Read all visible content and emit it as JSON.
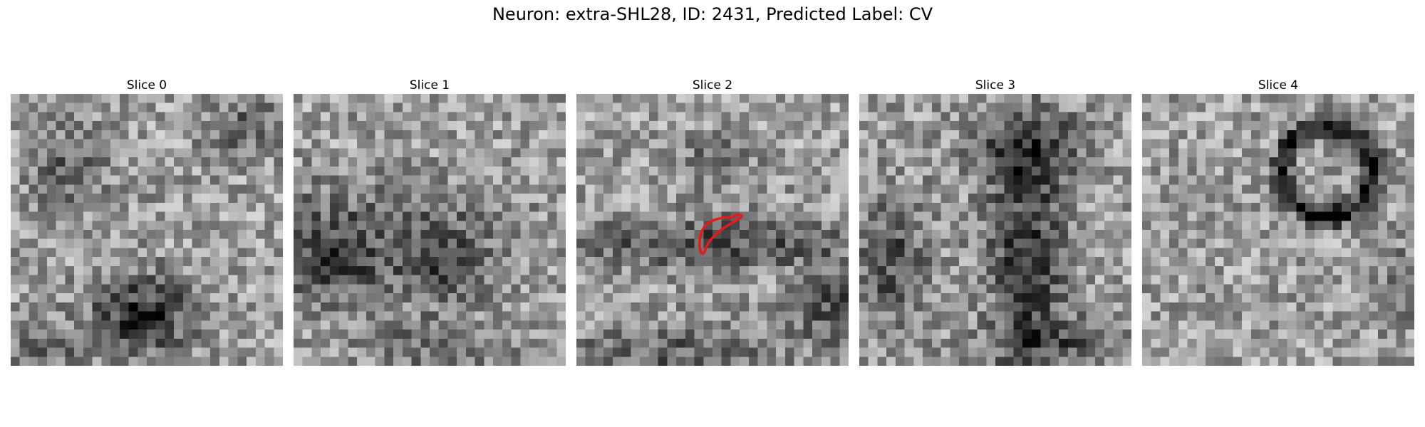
{
  "figure": {
    "title": "Neuron: extra-SHL28, ID: 2431, Predicted Label: CV"
  },
  "panels": [
    {
      "title": "Slice 0",
      "pattern": "blob-bottom"
    },
    {
      "title": "Slice 1",
      "pattern": "dark-band"
    },
    {
      "title": "Slice 2",
      "pattern": "band-with-contour",
      "contour_color": "#e41a1c"
    },
    {
      "title": "Slice 3",
      "pattern": "dark-column"
    },
    {
      "title": "Slice 4",
      "pattern": "ring"
    }
  ]
}
